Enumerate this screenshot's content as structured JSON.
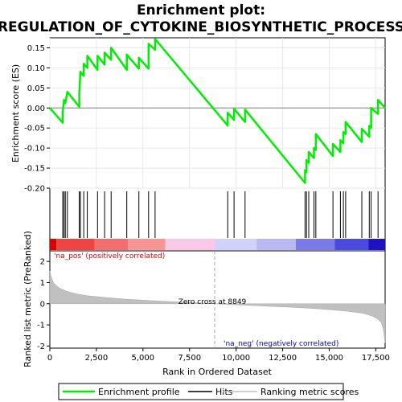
{
  "chart_data": {
    "type": "line",
    "title_line1": "Enrichment plot:",
    "title_line2": "REGULATION_OF_CYTOKINE_BIOSYNTHETIC_PROCESS",
    "top_ylabel": "Enrichment score (ES)",
    "bottom_ylabel": "Ranked list metric (PreRanked)",
    "xlabel": "Rank in Ordered Dataset",
    "x_range": [
      0,
      18000
    ],
    "x_ticks": [
      0,
      2500,
      5000,
      7500,
      10000,
      12500,
      15000,
      17500
    ],
    "x_tick_labels": [
      "0",
      "2,500",
      "5,000",
      "7,500",
      "10,000",
      "12,500",
      "15,000",
      "17,500"
    ],
    "es_range": [
      -0.2,
      0.175
    ],
    "es_ticks": [
      0.15,
      0.1,
      0.05,
      0.0,
      -0.05,
      -0.1,
      -0.15,
      -0.2
    ],
    "es_tick_labels": [
      "0.15",
      "0.10",
      "0.05",
      "0.00",
      "-0.05",
      "-0.10",
      "-0.15",
      "-0.20"
    ],
    "metric_range": [
      -2.1,
      2.5
    ],
    "metric_ticks": [
      2,
      1,
      0,
      -1,
      -2
    ],
    "metric_tick_labels": [
      "2",
      "1",
      "0",
      "-1",
      "-2"
    ],
    "hits": [
      690,
      760,
      830,
      940,
      1580,
      1640,
      1820,
      2010,
      2560,
      2940,
      3290,
      4130,
      4780,
      5300,
      5650,
      9550,
      9890,
      10480,
      13700,
      13780,
      13900,
      14180,
      14280,
      15200,
      15600,
      15760,
      15880,
      16750,
      17150,
      17250,
      17620
    ],
    "enrichment_profile": [
      [
        0,
        0.0
      ],
      [
        690,
        -0.037
      ],
      [
        690,
        -0.01
      ],
      [
        760,
        0.02
      ],
      [
        830,
        0.012
      ],
      [
        940,
        0.04
      ],
      [
        1580,
        0.003
      ],
      [
        1580,
        0.035
      ],
      [
        1640,
        0.09
      ],
      [
        1820,
        0.08
      ],
      [
        1820,
        0.11
      ],
      [
        2010,
        0.1
      ],
      [
        2010,
        0.13
      ],
      [
        2560,
        0.095
      ],
      [
        2560,
        0.13
      ],
      [
        2940,
        0.108
      ],
      [
        2940,
        0.138
      ],
      [
        3290,
        0.12
      ],
      [
        3290,
        0.15
      ],
      [
        4130,
        0.095
      ],
      [
        4130,
        0.133
      ],
      [
        4780,
        0.098
      ],
      [
        4780,
        0.125
      ],
      [
        5300,
        0.098
      ],
      [
        5300,
        0.16
      ],
      [
        5650,
        0.145
      ],
      [
        5650,
        0.172
      ],
      [
        9550,
        -0.044
      ],
      [
        9550,
        -0.012
      ],
      [
        9890,
        -0.03
      ],
      [
        9890,
        -0.002
      ],
      [
        10480,
        -0.035
      ],
      [
        10480,
        -0.004
      ],
      [
        13700,
        -0.187
      ],
      [
        13700,
        -0.155
      ],
      [
        13780,
        -0.16
      ],
      [
        13780,
        -0.13
      ],
      [
        13900,
        -0.137
      ],
      [
        13900,
        -0.11
      ],
      [
        14180,
        -0.125
      ],
      [
        14180,
        -0.1
      ],
      [
        14280,
        -0.105
      ],
      [
        14280,
        -0.065
      ],
      [
        15200,
        -0.12
      ],
      [
        15200,
        -0.09
      ],
      [
        15600,
        -0.11
      ],
      [
        15600,
        -0.08
      ],
      [
        15760,
        -0.088
      ],
      [
        15760,
        -0.06
      ],
      [
        15880,
        -0.065
      ],
      [
        15880,
        -0.035
      ],
      [
        16750,
        -0.085
      ],
      [
        16750,
        -0.052
      ],
      [
        17150,
        -0.072
      ],
      [
        17150,
        -0.045
      ],
      [
        17250,
        -0.05
      ],
      [
        17250,
        0.0
      ],
      [
        17620,
        -0.015
      ],
      [
        17620,
        0.02
      ],
      [
        18000,
        0.0
      ]
    ],
    "metric_curve": [
      [
        0,
        1.55
      ],
      [
        40,
        1.4
      ],
      [
        100,
        1.2
      ],
      [
        200,
        1.0
      ],
      [
        350,
        0.85
      ],
      [
        600,
        0.7
      ],
      [
        1000,
        0.56
      ],
      [
        1500,
        0.45
      ],
      [
        2000,
        0.38
      ],
      [
        3000,
        0.29
      ],
      [
        4000,
        0.22
      ],
      [
        5000,
        0.17
      ],
      [
        6000,
        0.12
      ],
      [
        7000,
        0.08
      ],
      [
        8000,
        0.04
      ],
      [
        8849,
        0.0
      ],
      [
        10000,
        -0.05
      ],
      [
        11000,
        -0.09
      ],
      [
        12000,
        -0.13
      ],
      [
        13000,
        -0.17
      ],
      [
        14000,
        -0.22
      ],
      [
        15000,
        -0.28
      ],
      [
        16000,
        -0.36
      ],
      [
        16800,
        -0.45
      ],
      [
        17300,
        -0.58
      ],
      [
        17600,
        -0.72
      ],
      [
        17800,
        -0.9
      ],
      [
        17900,
        -1.2
      ],
      [
        17960,
        -1.6
      ],
      [
        18000,
        -1.85
      ]
    ],
    "color_bar_segments": [
      {
        "from": 0,
        "to": 350,
        "color": "#dd0000"
      },
      {
        "from": 350,
        "to": 2400,
        "color": "#ee4444"
      },
      {
        "from": 2400,
        "to": 4200,
        "color": "#f26d6d"
      },
      {
        "from": 4200,
        "to": 6200,
        "color": "#f79595"
      },
      {
        "from": 6200,
        "to": 8849,
        "color": "#fcc8e8"
      },
      {
        "from": 8849,
        "to": 11100,
        "color": "#d2d2f8"
      },
      {
        "from": 11100,
        "to": 13200,
        "color": "#b8b8f2"
      },
      {
        "from": 13200,
        "to": 15300,
        "color": "#7a7ae8"
      },
      {
        "from": 15300,
        "to": 17100,
        "color": "#4a4ade"
      },
      {
        "from": 17100,
        "to": 18000,
        "color": "#1c14c4"
      }
    ],
    "zero_cross_label": "Zero cross at 8849",
    "zero_cross_rank": 8849,
    "pos_label": "'na_pos' (positively correlated)",
    "neg_label": "'na_neg' (negatively correlated)",
    "pos_color": "#dd0000",
    "neg_color": "#0000cc",
    "profile_color": "#00ee00",
    "legend": [
      {
        "label": "Enrichment profile",
        "color": "#00ee00"
      },
      {
        "label": "Hits",
        "color": "#000000"
      },
      {
        "label": "Ranking metric scores",
        "color": "#c0c0c0"
      }
    ]
  }
}
